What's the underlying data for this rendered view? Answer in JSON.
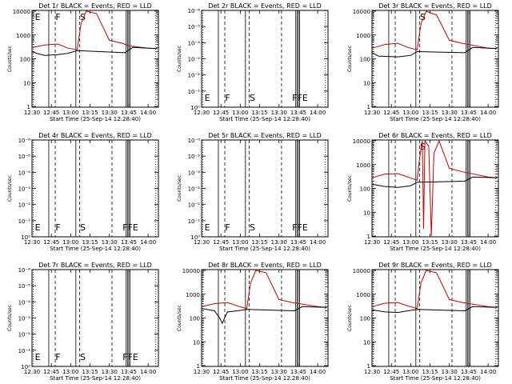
{
  "chart_data": [
    {
      "type": "line",
      "title": "Det 1r BLACK = Events, RED = LLD",
      "ylabel": "Counts/sec",
      "xlabel": "Start Time (25-Sep-14 12:28:40)",
      "x_ticks": [
        "12:30",
        "12:45",
        "13:00",
        "13:15",
        "13:30",
        "13:45",
        "14:00"
      ],
      "y_ticks": [
        "1",
        "10",
        "100",
        "1000",
        "10000"
      ],
      "y_scale": "log",
      "ylim": [
        1,
        10000
      ],
      "markers": [
        {
          "label": "E",
          "time": "12:31",
          "style": "solid"
        },
        {
          "label": "F",
          "time": "12:47",
          "style": "dashed"
        },
        {
          "label": "S",
          "time": "13:06",
          "style": "dashed"
        }
      ],
      "series": [
        {
          "name": "LLD",
          "color": "#cc0000",
          "points": [
            [
              "12:30",
              300
            ],
            [
              "12:40",
              380
            ],
            [
              "12:50",
              420
            ],
            [
              "12:58",
              280
            ],
            [
              "13:05",
              240
            ],
            [
              "13:08",
              3000
            ],
            [
              "13:12",
              10000
            ],
            [
              "13:20",
              8000
            ],
            [
              "13:30",
              600
            ],
            [
              "13:40",
              450
            ],
            [
              "13:45",
              350
            ],
            [
              "14:00",
              280
            ],
            [
              "14:07",
              270
            ]
          ]
        },
        {
          "name": "Events",
          "color": "#000000",
          "points": [
            [
              "12:30",
              200
            ],
            [
              "12:35",
              160
            ],
            [
              "12:40",
              140
            ],
            [
              "12:50",
              150
            ],
            [
              "12:58",
              170
            ],
            [
              "13:05",
              220
            ],
            [
              "13:42",
              180
            ],
            [
              "13:48",
              300
            ],
            [
              "14:07",
              270
            ]
          ]
        }
      ]
    },
    {
      "type": "line",
      "title": "Det 2r BLACK = Events, RED = LLD",
      "ylabel": "Counts/sec",
      "xlabel": "Start Time (25-Sep-14 12:28:40)",
      "x_ticks": [
        "12:30",
        "12:45",
        "13:00",
        "13:15",
        "13:30",
        "13:45",
        "14:00"
      ],
      "y_ticks": [
        "10⁰",
        "10⁻¹",
        "10⁻²",
        "10⁻³",
        "10⁻⁴",
        "10⁻⁵",
        "10⁻⁶"
      ],
      "markers": [
        {
          "label": "E",
          "time": "12:31",
          "style": "solid"
        },
        {
          "label": "F",
          "time": "12:47",
          "style": "dashed"
        },
        {
          "label": "S",
          "time": "13:06",
          "style": "dashed"
        },
        {
          "label": "FFE",
          "time": "13:39",
          "style": "solid"
        }
      ],
      "series": []
    },
    {
      "type": "line",
      "title": "Det 3r BLACK = Events, RED = LLD",
      "ylabel": "Counts/sec",
      "xlabel": "Start Time (25-Sep-14 12:28:40)",
      "x_ticks": [
        "12:30",
        "12:45",
        "13:00",
        "13:15",
        "13:30",
        "13:45",
        "14:00"
      ],
      "y_ticks": [
        "1",
        "10",
        "100",
        "1000",
        "10000"
      ],
      "y_scale": "log",
      "ylim": [
        1,
        10000
      ],
      "markers": [
        {
          "label": "S",
          "time": "13:06",
          "style": "dashed"
        }
      ],
      "series": [
        {
          "name": "LLD",
          "color": "#cc0000",
          "points": [
            [
              "12:30",
              280
            ],
            [
              "12:40",
              400
            ],
            [
              "12:50",
              450
            ],
            [
              "12:58",
              300
            ],
            [
              "13:05",
              240
            ],
            [
              "13:08",
              3000
            ],
            [
              "13:12",
              10000
            ],
            [
              "13:20",
              7000
            ],
            [
              "13:30",
              600
            ],
            [
              "13:40",
              450
            ],
            [
              "14:00",
              280
            ],
            [
              "14:07",
              270
            ]
          ]
        },
        {
          "name": "Events",
          "color": "#000000",
          "points": [
            [
              "12:30",
              180
            ],
            [
              "12:35",
              130
            ],
            [
              "12:50",
              120
            ],
            [
              "13:00",
              140
            ],
            [
              "13:05",
              200
            ],
            [
              "13:42",
              180
            ],
            [
              "13:48",
              300
            ],
            [
              "14:07",
              270
            ]
          ]
        }
      ]
    },
    {
      "type": "line",
      "title": "Det 4r BLACK = Events, RED = LLD",
      "ylabel": "Counts/sec",
      "xlabel": "Start Time (25-Sep-14 12:28:40)",
      "x_ticks": [
        "12:30",
        "12:45",
        "13:00",
        "13:15",
        "13:30",
        "13:45",
        "14:00"
      ],
      "y_ticks": [
        "10⁰",
        "10⁻¹",
        "10⁻²",
        "10⁻³",
        "10⁻⁴",
        "10⁻⁵",
        "10⁻⁶"
      ],
      "markers": [
        {
          "label": "E",
          "time": "12:31",
          "style": "solid"
        },
        {
          "label": "F",
          "time": "12:47",
          "style": "dashed"
        },
        {
          "label": "S",
          "time": "13:06",
          "style": "dashed"
        },
        {
          "label": "FFE",
          "time": "13:39",
          "style": "solid"
        }
      ],
      "series": []
    },
    {
      "type": "line",
      "title": "Det 5r BLACK = Events, RED = LLD",
      "ylabel": "Counts/sec",
      "xlabel": "Start Time (25-Sep-14 12:28:40)",
      "x_ticks": [
        "12:30",
        "12:45",
        "13:00",
        "13:15",
        "13:30",
        "13:45",
        "14:00"
      ],
      "y_ticks": [
        "10⁰",
        "10⁻¹",
        "10⁻²",
        "10⁻³",
        "10⁻⁴",
        "10⁻⁵",
        "10⁻⁶"
      ],
      "markers": [
        {
          "label": "E",
          "time": "12:31",
          "style": "solid"
        },
        {
          "label": "F",
          "time": "12:47",
          "style": "dashed"
        },
        {
          "label": "S",
          "time": "13:06",
          "style": "dashed"
        },
        {
          "label": "FFE",
          "time": "13:39",
          "style": "solid"
        }
      ],
      "series": []
    },
    {
      "type": "line",
      "title": "Det 6r BLACK = Events, RED = LLD",
      "ylabel": "Counts/sec",
      "xlabel": "Start Time (25-Sep-14 12:28:40)",
      "x_ticks": [
        "12:30",
        "12:45",
        "13:00",
        "13:15",
        "13:30",
        "13:45",
        "14:00"
      ],
      "y_ticks": [
        "1",
        "10",
        "100",
        "1000",
        "10000"
      ],
      "y_scale": "log",
      "ylim": [
        1,
        10000
      ],
      "markers": [
        {
          "label": "S",
          "time": "13:06",
          "style": "dashed"
        }
      ],
      "series": [
        {
          "name": "LLD",
          "color": "#cc0000",
          "points": [
            [
              "12:30",
              280
            ],
            [
              "12:40",
              400
            ],
            [
              "12:50",
              420
            ],
            [
              "12:58",
              300
            ],
            [
              "13:05",
              220
            ],
            [
              "13:07",
              2000
            ],
            [
              "13:09",
              10000
            ],
            [
              "13:10",
              2
            ],
            [
              "13:11",
              10000
            ],
            [
              "13:14",
              6000
            ],
            [
              "13:16",
              1
            ],
            [
              "13:18",
              3000
            ],
            [
              "13:22",
              10000
            ],
            [
              "13:30",
              700
            ],
            [
              "13:40",
              500
            ],
            [
              "14:00",
              300
            ],
            [
              "14:07",
              280
            ]
          ]
        },
        {
          "name": "Events",
          "color": "#000000",
          "points": [
            [
              "12:30",
              150
            ],
            [
              "12:40",
              120
            ],
            [
              "12:50",
              110
            ],
            [
              "13:00",
              130
            ],
            [
              "13:05",
              180
            ],
            [
              "13:42",
              200
            ],
            [
              "13:48",
              300
            ],
            [
              "14:07",
              280
            ]
          ]
        }
      ]
    },
    {
      "type": "line",
      "title": "Det 7r BLACK = Events, RED = LLD",
      "ylabel": "Counts/sec",
      "xlabel": "Start Time (25-Sep-14 12:28:40)",
      "x_ticks": [
        "12:30",
        "12:45",
        "13:00",
        "13:15",
        "13:30",
        "13:45",
        "14:00"
      ],
      "y_ticks": [
        "10⁰",
        "10⁻¹",
        "10⁻²",
        "10⁻³",
        "10⁻⁴",
        "10⁻⁵",
        "10⁻⁶"
      ],
      "markers": [
        {
          "label": "E",
          "time": "12:31",
          "style": "solid"
        },
        {
          "label": "F",
          "time": "12:47",
          "style": "dashed"
        },
        {
          "label": "S",
          "time": "13:06",
          "style": "dashed"
        },
        {
          "label": "FFE",
          "time": "13:39",
          "style": "solid"
        }
      ],
      "series": []
    },
    {
      "type": "line",
      "title": "Det 8r BLACK = Events, RED = LLD",
      "ylabel": "Counts/sec",
      "xlabel": "Start Time (25-Sep-14 12:28:40)",
      "x_ticks": [
        "12:30",
        "12:45",
        "13:00",
        "13:15",
        "13:30",
        "13:45",
        "14:00"
      ],
      "y_ticks": [
        "1",
        "10",
        "100",
        "1000",
        "10000"
      ],
      "y_scale": "log",
      "ylim": [
        1,
        10000
      ],
      "markers": [],
      "series": [
        {
          "name": "LLD",
          "color": "#cc0000",
          "points": [
            [
              "12:30",
              300
            ],
            [
              "12:40",
              400
            ],
            [
              "12:50",
              450
            ],
            [
              "12:58",
              320
            ],
            [
              "13:05",
              250
            ],
            [
              "13:08",
              3000
            ],
            [
              "13:12",
              10000
            ],
            [
              "13:20",
              8000
            ],
            [
              "13:30",
              600
            ],
            [
              "13:40",
              450
            ],
            [
              "14:00",
              300
            ],
            [
              "14:07",
              280
            ]
          ]
        },
        {
          "name": "Events",
          "color": "#000000",
          "points": [
            [
              "12:30",
              250
            ],
            [
              "12:40",
              200
            ],
            [
              "12:44",
              100
            ],
            [
              "12:46",
              60
            ],
            [
              "12:50",
              180
            ],
            [
              "12:58",
              200
            ],
            [
              "13:05",
              230
            ],
            [
              "13:42",
              200
            ],
            [
              "13:48",
              300
            ],
            [
              "14:07",
              280
            ]
          ]
        }
      ]
    },
    {
      "type": "line",
      "title": "Det 9r BLACK = Events, RED = LLD",
      "ylabel": "Counts/sec",
      "xlabel": "Start Time (25-Sep-14 12:28:40)",
      "x_ticks": [
        "12:30",
        "12:45",
        "13:00",
        "13:15",
        "13:30",
        "13:45",
        "14:00"
      ],
      "y_ticks": [
        "1",
        "10",
        "100",
        "1000",
        "10000"
      ],
      "y_scale": "log",
      "ylim": [
        1,
        10000
      ],
      "markers": [],
      "series": [
        {
          "name": "LLD",
          "color": "#cc0000",
          "points": [
            [
              "12:30",
              300
            ],
            [
              "12:40",
              420
            ],
            [
              "12:50",
              450
            ],
            [
              "12:58",
              320
            ],
            [
              "13:05",
              250
            ],
            [
              "13:08",
              3000
            ],
            [
              "13:12",
              10000
            ],
            [
              "13:20",
              8000
            ],
            [
              "13:30",
              600
            ],
            [
              "13:40",
              450
            ],
            [
              "14:00",
              300
            ],
            [
              "14:07",
              280
            ]
          ]
        },
        {
          "name": "Events",
          "color": "#000000",
          "points": [
            [
              "12:30",
              220
            ],
            [
              "12:40",
              180
            ],
            [
              "12:50",
              170
            ],
            [
              "12:58",
              200
            ],
            [
              "13:05",
              230
            ],
            [
              "13:42",
              200
            ],
            [
              "13:48",
              300
            ],
            [
              "14:07",
              280
            ]
          ]
        }
      ]
    }
  ]
}
